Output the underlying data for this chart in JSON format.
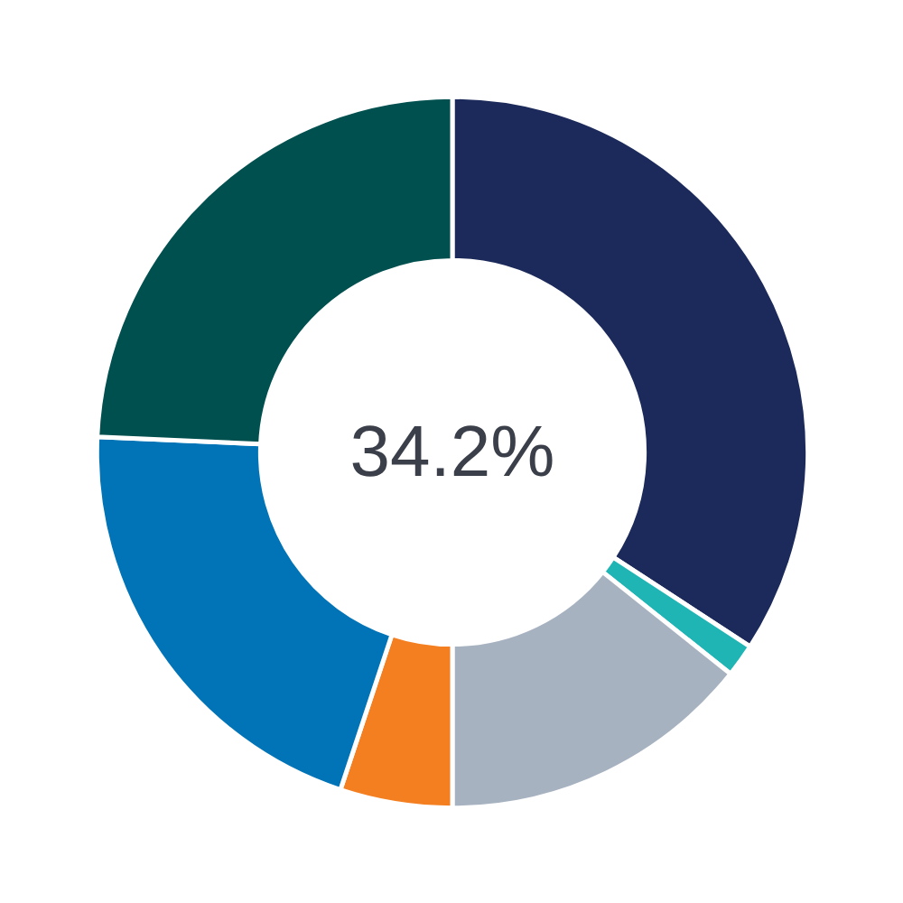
{
  "chart_data": {
    "type": "donut",
    "categories": [
      null,
      null,
      null,
      null,
      null,
      null
    ],
    "values": [
      34.2,
      1.5,
      14.3,
      5.1,
      20.6,
      24.3
    ],
    "colors": [
      "#1b2a5a",
      "#20b5b5",
      "#a7b2c1",
      "#f47f20",
      "#0074b7",
      "#005050"
    ],
    "annotations": [
      "34.2%"
    ]
  }
}
